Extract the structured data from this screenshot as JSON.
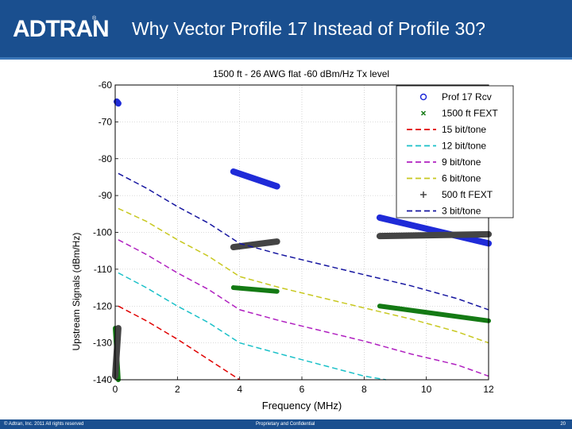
{
  "header": {
    "logo": "ADTRAN",
    "title": "Why Vector Profile 17 Instead of Profile 30?"
  },
  "footer": {
    "copyright": "© Adtran, Inc. 2011 All rights reserved",
    "center": "Proprietary and Confidential",
    "page": "20"
  },
  "chart_data": {
    "type": "line",
    "title": "1500 ft - 26 AWG flat -60 dBm/Hz Tx level",
    "xlabel": "Frequency (MHz)",
    "ylabel": "Upstream Signals (dBm/Hz)",
    "xlim": [
      0,
      12
    ],
    "ylim": [
      -140,
      -60
    ],
    "xticks": [
      0,
      2,
      4,
      6,
      8,
      10,
      12
    ],
    "yticks": [
      -60,
      -70,
      -80,
      -90,
      -100,
      -110,
      -120,
      -130,
      -140
    ],
    "grid": true,
    "legend_position": "top-right",
    "legend": [
      "Prof 17 Rcv",
      "1500 ft FEXT",
      "15 bit/tone",
      "12 bit/tone",
      "9 bit/tone",
      "6 bit/tone",
      "500 ft FEXT",
      "3 bit/tone"
    ],
    "series": [
      {
        "name": "Prof 17 Rcv",
        "style": "circle",
        "color": "#1f2bd8",
        "segments": [
          [
            [
              0.05,
              -64.5
            ],
            [
              0.1,
              -65
            ]
          ],
          [
            [
              3.8,
              -83.5
            ],
            [
              5.2,
              -87.5
            ]
          ],
          [
            [
              8.5,
              -96
            ],
            [
              12,
              -103
            ]
          ]
        ]
      },
      {
        "name": "1500 ft FEXT",
        "style": "x",
        "color": "#147a14",
        "segments": [
          [
            [
              0.0,
              -126
            ],
            [
              0.1,
              -140
            ]
          ],
          [
            [
              3.8,
              -115
            ],
            [
              5.2,
              -116
            ]
          ],
          [
            [
              8.5,
              -120
            ],
            [
              12,
              -124
            ]
          ]
        ]
      },
      {
        "name": "15 bit/tone",
        "style": "dashed",
        "color": "#e00000",
        "points": [
          [
            0.1,
            -120
          ],
          [
            1,
            -124
          ],
          [
            2,
            -129
          ],
          [
            3,
            -134.5
          ],
          [
            4,
            -140
          ]
        ]
      },
      {
        "name": "12 bit/tone",
        "style": "dashed",
        "color": "#19c0c8",
        "points": [
          [
            0.1,
            -111
          ],
          [
            1,
            -115
          ],
          [
            2,
            -120
          ],
          [
            3,
            -124.5
          ],
          [
            4,
            -130
          ],
          [
            5.3,
            -133
          ],
          [
            6.2,
            -135
          ],
          [
            8,
            -139
          ],
          [
            8.7,
            -140
          ]
        ]
      },
      {
        "name": "9 bit/tone",
        "style": "dashed",
        "color": "#b020c0",
        "points": [
          [
            0.1,
            -102
          ],
          [
            1,
            -106
          ],
          [
            2,
            -111
          ],
          [
            3,
            -115.5
          ],
          [
            4,
            -121
          ],
          [
            5.3,
            -124
          ],
          [
            8,
            -129.5
          ],
          [
            9.5,
            -133
          ],
          [
            11,
            -136
          ],
          [
            12,
            -139
          ]
        ]
      },
      {
        "name": "6 bit/tone",
        "style": "dashed",
        "color": "#c8c820",
        "points": [
          [
            0.1,
            -93.5
          ],
          [
            1,
            -97
          ],
          [
            2,
            -102
          ],
          [
            3,
            -106.5
          ],
          [
            4,
            -112
          ],
          [
            5.3,
            -115
          ],
          [
            8,
            -120.5
          ],
          [
            9.5,
            -123.5
          ],
          [
            11,
            -127
          ],
          [
            12,
            -130
          ]
        ]
      },
      {
        "name": "500 ft FEXT",
        "style": "plus",
        "color": "#444444",
        "segments": [
          [
            [
              0.0,
              -139
            ],
            [
              0.1,
              -126
            ]
          ],
          [
            [
              3.8,
              -104
            ],
            [
              5.2,
              -102.5
            ]
          ],
          [
            [
              8.5,
              -101
            ],
            [
              12,
              -100.5
            ]
          ]
        ]
      },
      {
        "name": "3 bit/tone",
        "style": "dashed",
        "color": "#1616a0",
        "points": [
          [
            0.1,
            -84
          ],
          [
            1,
            -88
          ],
          [
            2,
            -93
          ],
          [
            3,
            -97.5
          ],
          [
            4,
            -103
          ],
          [
            5.3,
            -106
          ],
          [
            8,
            -111.5
          ],
          [
            9.5,
            -114.5
          ],
          [
            11,
            -118
          ],
          [
            12,
            -121
          ]
        ]
      }
    ]
  }
}
